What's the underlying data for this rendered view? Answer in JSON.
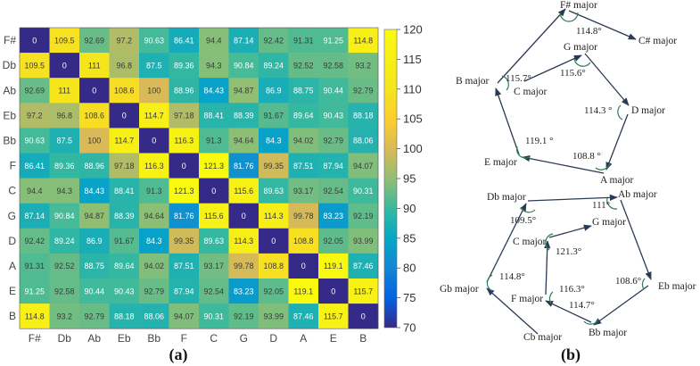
{
  "chart_data": [
    {
      "type": "heatmap",
      "panel_label": "(a)",
      "rows": [
        "F#",
        "Db",
        "Ab",
        "Eb",
        "Bb",
        "F",
        "C",
        "G",
        "D",
        "A",
        "E",
        "B"
      ],
      "columns": [
        "F#",
        "Db",
        "Ab",
        "Eb",
        "Bb",
        "F",
        "C",
        "G",
        "D",
        "A",
        "E",
        "B"
      ],
      "values": [
        [
          "0",
          "109.5",
          "92.69",
          "97.2",
          "90.63",
          "86.41",
          "94.4",
          "87.14",
          "92.42",
          "91.31",
          "91.25",
          "114.8"
        ],
        [
          "109.5",
          "0",
          "111",
          "96.8",
          "87.5",
          "89.36",
          "94.3",
          "90.84",
          "89.24",
          "92.52",
          "92.58",
          "93.2"
        ],
        [
          "92.69",
          "111",
          "0",
          "108.6",
          "100",
          "88.96",
          "84.43",
          "94.87",
          "86.9",
          "88.75",
          "90.44",
          "92.79"
        ],
        [
          "97.2",
          "96.8",
          "108.6",
          "0",
          "114.7",
          "97.18",
          "88.41",
          "88.39",
          "91.67",
          "89.64",
          "90.43",
          "88.18"
        ],
        [
          "90.63",
          "87.5",
          "100",
          "114.7",
          "0",
          "116.3",
          "91.3",
          "94.64",
          "84.3",
          "94.02",
          "92.79",
          "88.06"
        ],
        [
          "86.41",
          "89.36",
          "88.96",
          "97.18",
          "116.3",
          "0",
          "121.3",
          "81.76",
          "99.35",
          "87.51",
          "87.94",
          "94.07"
        ],
        [
          "94.4",
          "94.3",
          "84.43",
          "88.41",
          "91.3",
          "121.3",
          "0",
          "115.6",
          "89.63",
          "93.17",
          "92.54",
          "90.31"
        ],
        [
          "87.14",
          "90.84",
          "94.87",
          "88.39",
          "94.64",
          "81.76",
          "115.6",
          "0",
          "114.3",
          "99.78",
          "83.23",
          "92.19"
        ],
        [
          "92.42",
          "89.24",
          "86.9",
          "91.67",
          "84.3",
          "99.35",
          "89.63",
          "114.3",
          "0",
          "108.8",
          "92.05",
          "93.99"
        ],
        [
          "91.31",
          "92.52",
          "88.75",
          "89.64",
          "94.02",
          "87.51",
          "93.17",
          "99.78",
          "108.8",
          "0",
          "119.1",
          "87.46"
        ],
        [
          "91.25",
          "92.58",
          "90.44",
          "90.43",
          "92.79",
          "87.94",
          "92.54",
          "83.23",
          "92.05",
          "119.1",
          "0",
          "115.7"
        ],
        [
          "114.8",
          "93.2",
          "92.79",
          "88.18",
          "88.06",
          "94.07",
          "90.31",
          "92.19",
          "93.99",
          "87.46",
          "115.7",
          "0"
        ]
      ],
      "colorbar": {
        "min": 70,
        "max": 120,
        "ticks": [
          "70",
          "75",
          "80",
          "85",
          "90",
          "95",
          "100",
          "105",
          "110",
          "115",
          "120"
        ]
      },
      "colormap": "parula"
    },
    {
      "type": "diagram",
      "panel_label": "(b)",
      "pentagons": [
        {
          "nodes": [
            "F# major",
            "C# major",
            "G major",
            "B major",
            "C major",
            "D major",
            "E major",
            "A major"
          ],
          "angles": [
            "114.8°",
            "115.7°",
            "115.6°",
            "114.3 °",
            "119.1 °",
            "108.8 °"
          ]
        },
        {
          "nodes": [
            "Db major",
            "Ab major",
            "G major",
            "C major",
            "Gb major",
            "F major",
            "Eb major",
            "Cb major",
            "Bb major"
          ],
          "angles": [
            "109.5°",
            "111°",
            "121.3°",
            "114.8°",
            "116.3°",
            "108.6°",
            "114.7°"
          ]
        }
      ]
    }
  ],
  "colors": {
    "arrow": "#2b3a55",
    "arc": "#2e7d5b",
    "text": "#222222"
  }
}
